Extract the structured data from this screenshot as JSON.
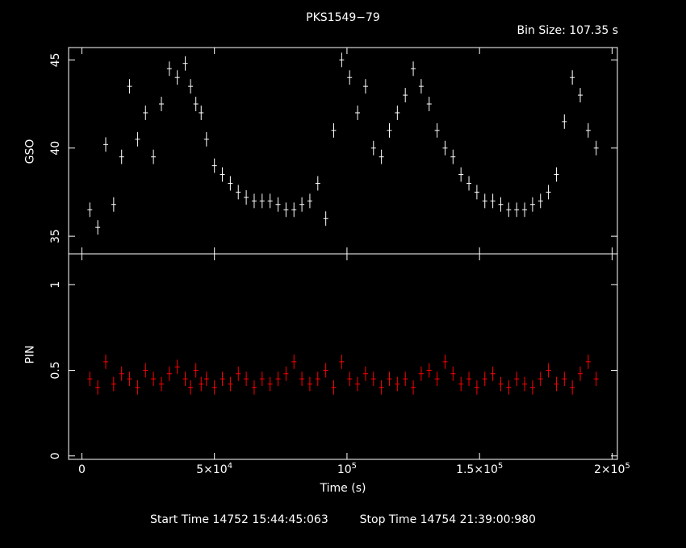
{
  "title": "PKS1549−79",
  "bin_size_label": "Bin Size: 107.35 s",
  "footer": {
    "start_label": "Start Time",
    "start_value": "14752 15:44:45:063",
    "stop_label": "Stop Time",
    "stop_value": "14754 21:39:00:980"
  },
  "colors": {
    "background": "#000000",
    "gso": "#ffffff",
    "pin": "#ff0000",
    "axes": "#ffffff"
  },
  "chart_data": [
    {
      "type": "scatter",
      "panel": "top",
      "ylabel": "GSO",
      "xlim": [
        -5000,
        202000
      ],
      "ylim": [
        34,
        45.7
      ],
      "yticks": [
        35,
        40,
        45
      ],
      "ytick_labels": [
        "35",
        "40",
        "45"
      ],
      "series": [
        {
          "x": [
            3000,
            6000,
            9000,
            12000,
            15000,
            18000,
            21000,
            24000,
            27000,
            30000,
            33000,
            36000,
            39000,
            41000,
            43000,
            45000,
            47000,
            50000,
            53000,
            56000,
            59000,
            62000,
            65000,
            68000,
            71000,
            74000,
            77000,
            80000,
            83000,
            86000,
            89000,
            92000,
            95000,
            98000,
            101000,
            104000,
            107000,
            110000,
            113000,
            116000,
            119000,
            122000,
            125000,
            128000,
            131000,
            134000,
            137000,
            140000,
            143000,
            146000,
            149000,
            152000,
            155000,
            158000,
            161000,
            164000,
            167000,
            170000,
            173000,
            176000,
            179000,
            182000,
            185000,
            188000,
            191000,
            194000
          ],
          "y": [
            36.5,
            35.5,
            40.2,
            36.8,
            39.5,
            43.5,
            40.5,
            42.0,
            39.5,
            42.5,
            44.5,
            44.0,
            44.8,
            43.5,
            42.5,
            42.0,
            40.5,
            39.0,
            38.5,
            38.0,
            37.5,
            37.2,
            37.0,
            37.0,
            37.0,
            36.8,
            36.5,
            36.5,
            36.8,
            37.0,
            38.0,
            36.0,
            41.0,
            45.0,
            44.0,
            42.0,
            43.5,
            40.0,
            39.5,
            41.0,
            42.0,
            43.0,
            44.5,
            43.5,
            42.5,
            41.0,
            40.0,
            39.5,
            38.5,
            38.0,
            37.5,
            37.0,
            37.0,
            36.8,
            36.5,
            36.5,
            36.5,
            36.8,
            37.0,
            37.5,
            38.5,
            41.5,
            44.0,
            43.0,
            41.0,
            40.0
          ]
        }
      ]
    },
    {
      "type": "scatter",
      "panel": "bottom",
      "ylabel": "PIN",
      "xlabel": "Time (s)",
      "xlim": [
        -5000,
        202000
      ],
      "ylim": [
        -0.02,
        1.18
      ],
      "yticks": [
        0,
        0.5,
        1
      ],
      "ytick_labels": [
        "0",
        "0.5",
        "1"
      ],
      "xticks": [
        0,
        50000,
        100000,
        150000,
        200000
      ],
      "xtick_labels": [
        [
          "0",
          ""
        ],
        [
          "5×10",
          "4"
        ],
        [
          "10",
          "5"
        ],
        [
          "1.5×10",
          "5"
        ],
        [
          "2×10",
          "5"
        ]
      ],
      "series": [
        {
          "x": [
            3000,
            6000,
            9000,
            12000,
            15000,
            18000,
            21000,
            24000,
            27000,
            30000,
            33000,
            36000,
            39000,
            41000,
            43000,
            45000,
            47000,
            50000,
            53000,
            56000,
            59000,
            62000,
            65000,
            68000,
            71000,
            74000,
            77000,
            80000,
            83000,
            86000,
            89000,
            92000,
            95000,
            98000,
            101000,
            104000,
            107000,
            110000,
            113000,
            116000,
            119000,
            122000,
            125000,
            128000,
            131000,
            134000,
            137000,
            140000,
            143000,
            146000,
            149000,
            152000,
            155000,
            158000,
            161000,
            164000,
            167000,
            170000,
            173000,
            176000,
            179000,
            182000,
            185000,
            188000,
            191000,
            194000
          ],
          "y": [
            0.45,
            0.4,
            0.55,
            0.42,
            0.48,
            0.45,
            0.4,
            0.5,
            0.45,
            0.42,
            0.48,
            0.52,
            0.45,
            0.4,
            0.5,
            0.42,
            0.45,
            0.4,
            0.45,
            0.42,
            0.48,
            0.45,
            0.4,
            0.45,
            0.42,
            0.45,
            0.48,
            0.55,
            0.45,
            0.42,
            0.45,
            0.5,
            0.4,
            0.55,
            0.45,
            0.42,
            0.48,
            0.45,
            0.4,
            0.45,
            0.42,
            0.45,
            0.4,
            0.48,
            0.5,
            0.45,
            0.55,
            0.48,
            0.42,
            0.45,
            0.4,
            0.45,
            0.48,
            0.42,
            0.4,
            0.45,
            0.42,
            0.4,
            0.45,
            0.5,
            0.42,
            0.45,
            0.4,
            0.48,
            0.55,
            0.45
          ]
        }
      ]
    }
  ]
}
